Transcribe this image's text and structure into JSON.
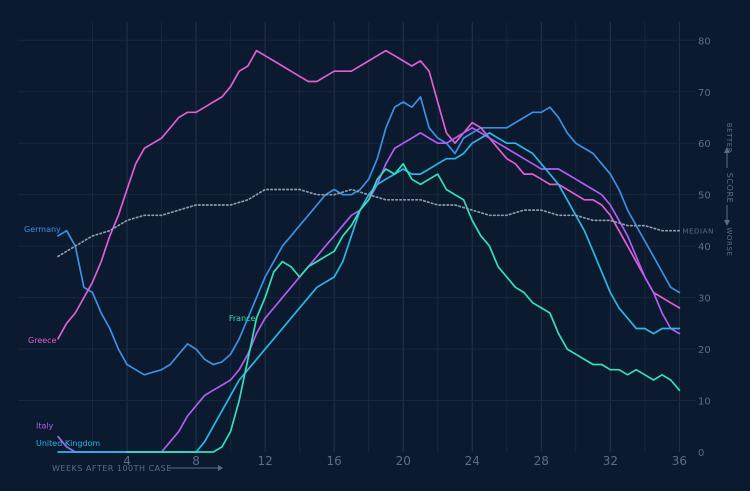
{
  "chart_data": {
    "type": "line",
    "title": "",
    "xlabel": "WEEKS AFTER 100TH CASE",
    "ylabel": "SCORE",
    "y_better": "BETTER",
    "y_worse": "WORSE",
    "xlim": [
      0,
      36.5
    ],
    "ylim": [
      0,
      82
    ],
    "x_ticks": [
      4,
      8,
      12,
      16,
      20,
      24,
      28,
      32,
      36
    ],
    "y_ticks": [
      0,
      10,
      20,
      30,
      40,
      50,
      60,
      70,
      80
    ],
    "grid": true,
    "median_label": "MEDIAN",
    "series": [
      {
        "name": "Germany",
        "color": "#3d8fe6",
        "style": "solid",
        "x": [
          0,
          0.5,
          1,
          1.5,
          2,
          2.5,
          3,
          3.5,
          4,
          4.5,
          5,
          5.5,
          6,
          6.5,
          7,
          7.5,
          8,
          8.5,
          9,
          9.5,
          10,
          10.5,
          11,
          11.5,
          12,
          12.5,
          13,
          13.5,
          14,
          14.5,
          15,
          15.5,
          16,
          16.5,
          17,
          17.5,
          18,
          18.5,
          19,
          19.5,
          20,
          20.5,
          21,
          21.5,
          22,
          22.5,
          23,
          23.5,
          24,
          24.5,
          25,
          25.5,
          26,
          26.5,
          27,
          27.5,
          28,
          28.5,
          29,
          29.5,
          30,
          30.5,
          31,
          31.5,
          32,
          32.5,
          33,
          33.5,
          34,
          34.5,
          35,
          35.5,
          36
        ],
        "values": [
          42,
          43,
          40,
          32,
          31,
          27,
          24,
          20,
          17,
          16,
          15,
          15.5,
          16,
          17,
          19,
          21,
          20,
          18,
          17,
          17.5,
          19,
          22,
          26,
          30,
          34,
          37,
          40,
          42,
          44,
          46,
          48,
          50,
          51,
          50,
          50,
          51,
          53,
          57,
          63,
          67,
          68,
          67,
          69,
          63,
          61,
          60,
          58,
          61,
          62,
          63,
          63,
          63,
          63,
          64,
          65,
          66,
          66,
          67,
          65,
          62,
          60,
          59,
          58,
          56,
          54,
          51,
          47,
          44,
          41,
          38,
          35,
          32,
          31
        ]
      },
      {
        "name": "Greece",
        "color": "#e05fd0",
        "style": "solid",
        "x": [
          0,
          0.5,
          1,
          1.5,
          2,
          2.5,
          3,
          3.5,
          4,
          4.5,
          5,
          5.5,
          6,
          6.5,
          7,
          7.5,
          8,
          8.5,
          9,
          9.5,
          10,
          10.5,
          11,
          11.5,
          12,
          12.5,
          13,
          13.5,
          14,
          14.5,
          15,
          15.5,
          16,
          16.5,
          17,
          17.5,
          18,
          18.5,
          19,
          19.5,
          20,
          20.5,
          21,
          21.5,
          22,
          22.5,
          23,
          23.5,
          24,
          24.5,
          25,
          25.5,
          26,
          26.5,
          27,
          27.5,
          28,
          28.5,
          29,
          29.5,
          30,
          30.5,
          31,
          31.5,
          32,
          32.5,
          33,
          33.5,
          34,
          34.5,
          35,
          35.5,
          36
        ],
        "values": [
          22,
          25,
          27,
          30,
          33,
          37,
          42,
          46,
          51,
          56,
          59,
          60,
          61,
          63,
          65,
          66,
          66,
          67,
          68,
          69,
          71,
          74,
          75,
          78,
          77,
          76,
          75,
          74,
          73,
          72,
          72,
          73,
          74,
          74,
          74,
          75,
          76,
          77,
          78,
          77,
          76,
          75,
          76,
          74,
          68,
          62,
          60,
          62,
          64,
          63,
          61,
          59,
          57,
          56,
          54,
          54,
          53,
          52,
          52,
          51,
          50,
          49,
          49,
          48,
          46,
          43,
          40,
          37,
          34,
          31,
          30,
          29,
          28
        ]
      },
      {
        "name": "Italy",
        "color": "#b25cf2",
        "style": "solid",
        "x": [
          0,
          0.5,
          1,
          1.5,
          2,
          2.5,
          3,
          3.5,
          4,
          4.5,
          5,
          5.5,
          6,
          6.5,
          7,
          7.5,
          8,
          8.5,
          9,
          9.5,
          10,
          10.5,
          11,
          11.5,
          12,
          12.5,
          13,
          13.5,
          14,
          14.5,
          15,
          15.5,
          16,
          16.5,
          17,
          17.5,
          18,
          18.5,
          19,
          19.5,
          20,
          20.5,
          21,
          21.5,
          22,
          22.5,
          23,
          23.5,
          24,
          24.5,
          25,
          25.5,
          26,
          26.5,
          27,
          27.5,
          28,
          28.5,
          29,
          29.5,
          30,
          30.5,
          31,
          31.5,
          32,
          32.5,
          33,
          33.5,
          34,
          34.5,
          35,
          35.5,
          36
        ],
        "values": [
          3,
          1,
          0,
          0,
          0,
          0,
          0,
          0,
          0,
          0,
          0,
          0,
          0,
          2,
          4,
          7,
          9,
          11,
          12,
          13,
          14,
          16,
          19,
          23,
          26,
          28,
          30,
          32,
          34,
          36,
          38,
          40,
          42,
          44,
          46,
          47,
          49,
          52,
          56,
          59,
          60,
          61,
          62,
          61,
          60,
          60,
          61,
          62,
          63,
          62,
          61,
          60,
          59,
          58,
          57,
          56,
          55,
          55,
          55,
          54,
          53,
          52,
          51,
          50,
          48,
          45,
          42,
          38,
          34,
          31,
          27,
          24,
          23
        ]
      },
      {
        "name": "United Kingdom",
        "color": "#2bb6e8",
        "style": "solid",
        "x": [
          0,
          0.5,
          1,
          1.5,
          2,
          2.5,
          3,
          3.5,
          4,
          4.5,
          5,
          5.5,
          6,
          6.5,
          7,
          7.5,
          8,
          8.5,
          9,
          9.5,
          10,
          10.5,
          11,
          11.5,
          12,
          12.5,
          13,
          13.5,
          14,
          14.5,
          15,
          15.5,
          16,
          16.5,
          17,
          17.5,
          18,
          18.5,
          19,
          19.5,
          20,
          20.5,
          21,
          21.5,
          22,
          22.5,
          23,
          23.5,
          24,
          24.5,
          25,
          25.5,
          26,
          26.5,
          27,
          27.5,
          28,
          28.5,
          29,
          29.5,
          30,
          30.5,
          31,
          31.5,
          32,
          32.5,
          33,
          33.5,
          34,
          34.5,
          35,
          35.5,
          36
        ],
        "values": [
          0,
          0,
          0,
          0,
          0,
          0,
          0,
          0,
          0,
          0,
          0,
          0,
          0,
          0,
          0,
          0,
          0,
          2,
          5,
          8,
          11,
          14,
          16,
          18,
          20,
          22,
          24,
          26,
          28,
          30,
          32,
          33,
          34,
          37,
          42,
          47,
          50,
          52,
          53,
          54,
          55,
          54,
          54,
          55,
          56,
          57,
          57,
          58,
          60,
          61,
          62,
          61,
          60,
          60,
          59,
          58,
          56,
          54,
          52,
          49,
          46,
          43,
          39,
          35,
          31,
          28,
          26,
          24,
          24,
          23,
          24,
          24,
          24
        ]
      },
      {
        "name": "France",
        "color": "#35e0b8",
        "style": "solid",
        "x": [
          4,
          4.5,
          5,
          5.5,
          6,
          6.5,
          7,
          7.5,
          8,
          8.5,
          9,
          9.5,
          10,
          10.5,
          11,
          11.5,
          12,
          12.5,
          13,
          13.5,
          14,
          14.5,
          15,
          15.5,
          16,
          16.5,
          17,
          17.5,
          18,
          18.5,
          19,
          19.5,
          20,
          20.5,
          21,
          21.5,
          22,
          22.5,
          23,
          23.5,
          24,
          24.5,
          25,
          25.5,
          26,
          26.5,
          27,
          27.5,
          28,
          28.5,
          29,
          29.5,
          30,
          30.5,
          31,
          31.5,
          32,
          32.5,
          33,
          33.5,
          34,
          34.5,
          35,
          35.5,
          36
        ],
        "values": [
          0,
          0,
          0,
          0,
          0,
          0,
          0,
          0,
          0,
          0,
          0,
          1,
          4,
          10,
          18,
          26,
          30,
          35,
          37,
          36,
          34,
          36,
          37,
          38,
          39,
          42,
          44,
          47,
          49,
          53,
          55,
          54,
          56,
          53,
          52,
          53,
          54,
          51,
          50,
          49,
          45,
          42,
          40,
          36,
          34,
          32,
          31,
          29,
          28,
          27,
          23,
          20,
          19,
          18,
          17,
          17,
          16,
          16,
          15,
          16,
          15,
          14,
          15,
          14,
          12
        ]
      },
      {
        "name": "MEDIAN",
        "color": "#8e9aab",
        "style": "dotted",
        "x": [
          0,
          1,
          2,
          3,
          4,
          5,
          6,
          7,
          8,
          9,
          10,
          11,
          12,
          13,
          14,
          15,
          16,
          17,
          18,
          19,
          20,
          21,
          22,
          23,
          24,
          25,
          26,
          27,
          28,
          29,
          30,
          31,
          32,
          33,
          34,
          35,
          36
        ],
        "values": [
          38,
          40,
          42,
          43,
          45,
          46,
          46,
          47,
          48,
          48,
          48,
          49,
          51,
          51,
          51,
          50,
          50,
          51,
          50,
          49,
          49,
          49,
          48,
          48,
          47,
          46,
          46,
          47,
          47,
          46,
          46,
          45,
          45,
          44,
          44,
          43,
          43
        ]
      }
    ]
  }
}
